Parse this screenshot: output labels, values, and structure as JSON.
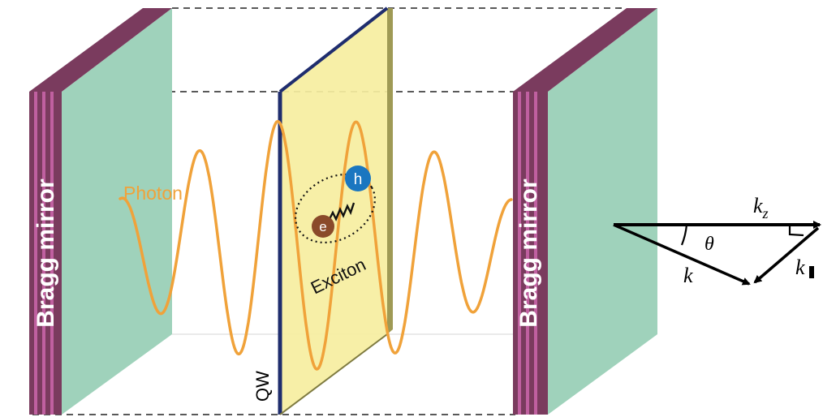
{
  "labels": {
    "left_mirror": "Bragg mirror",
    "right_mirror": "Bragg mirror",
    "photon": "Photon",
    "exciton": "Exciton",
    "electron": "e",
    "hole": "h",
    "quantum_well": "QW"
  },
  "vector_diagram": {
    "kz": "k",
    "kz_sub": "z",
    "k": "k",
    "k_parallel": "k",
    "theta": "θ"
  },
  "colors": {
    "mirror_face": "#9fd2bb",
    "mirror_edge": "#7a3b5e",
    "mirror_stripe": "#c060a0",
    "qw_fill": "#f6ee9f",
    "qw_edge": "#1f2d6e",
    "qw_side": "#9f9a55",
    "photon": "#f0a23a",
    "electron": "#8a4a2a",
    "hole": "#1a76c0"
  }
}
